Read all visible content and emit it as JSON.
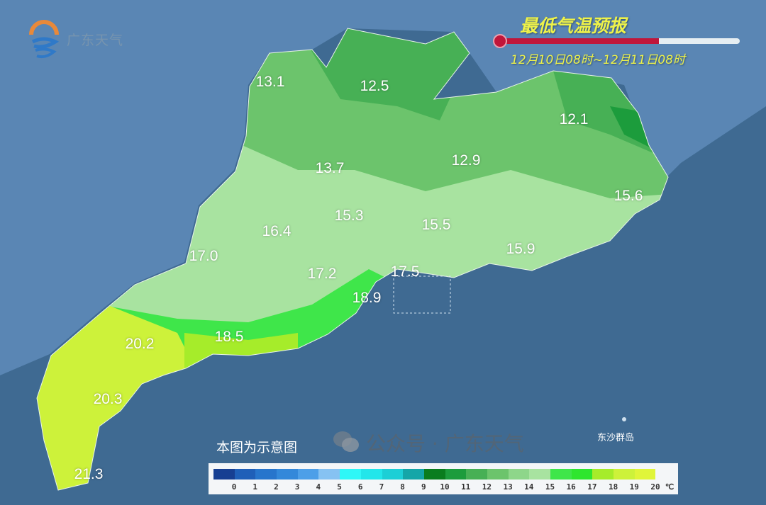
{
  "logo": {
    "text": "广东天气"
  },
  "title": "最低气温预报",
  "period": "12月10日08时~12月11日08时",
  "time_progress_fraction": 0.66,
  "note": "本图为示意图",
  "island_label": "东沙群岛",
  "watermark": "公众号 · 广东天气",
  "colors": {
    "title": "#eef24a",
    "sea": "#3f6a92",
    "land_outside": "#5a86b4",
    "thermometer": "#c0163a"
  },
  "map": {
    "labels": [
      {
        "value": "13.1"
      },
      {
        "value": "12.5"
      },
      {
        "value": "12.1"
      },
      {
        "value": "13.7"
      },
      {
        "value": "12.9"
      },
      {
        "value": "15.6"
      },
      {
        "value": "15.3"
      },
      {
        "value": "15.5"
      },
      {
        "value": "16.4"
      },
      {
        "value": "17.0"
      },
      {
        "value": "15.9"
      },
      {
        "value": "17.2"
      },
      {
        "value": "17.5"
      },
      {
        "value": "18.9"
      },
      {
        "value": "18.5"
      },
      {
        "value": "20.2"
      },
      {
        "value": "20.3"
      },
      {
        "value": "21.3"
      }
    ]
  },
  "legend": {
    "unit": "℃",
    "ticks": [
      "0",
      "1",
      "2",
      "3",
      "4",
      "5",
      "6",
      "7",
      "8",
      "9",
      "10",
      "11",
      "12",
      "13",
      "14",
      "15",
      "16",
      "17",
      "18",
      "19",
      "20"
    ],
    "colors": [
      "#173f92",
      "#1f5fb8",
      "#2775cc",
      "#3388da",
      "#4d9fe8",
      "#86c2f2",
      "#2ff7f7",
      "#22e6ea",
      "#1ccfd6",
      "#14a6a8",
      "#0a7d1e",
      "#1c9c3c",
      "#47b055",
      "#6cc46c",
      "#8ed68a",
      "#a8e3a0",
      "#3fe64a",
      "#2ee62e",
      "#a6ec2a",
      "#cdf23a",
      "#e0f53a"
    ]
  }
}
